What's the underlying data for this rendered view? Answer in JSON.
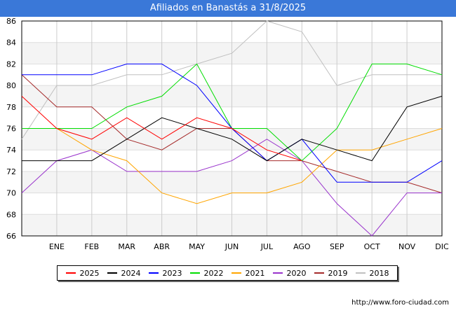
{
  "header": {
    "title": "Afiliados en Banastás a 31/8/2025"
  },
  "footer": {
    "url": "http://www.foro-ciudad.com"
  },
  "chart_data": {
    "type": "line",
    "title": "Afiliados en Banastás a 31/8/2025",
    "xlabel": "",
    "ylabel": "",
    "categories": [
      "",
      "ENE",
      "FEB",
      "MAR",
      "ABR",
      "MAY",
      "JUN",
      "JUL",
      "AGO",
      "SEP",
      "OCT",
      "NOV",
      "DIC"
    ],
    "ylim": [
      66,
      86
    ],
    "yticks": [
      66,
      68,
      70,
      72,
      74,
      76,
      78,
      80,
      82,
      84,
      86
    ],
    "grid": true,
    "legend_position": "bottom",
    "series": [
      {
        "name": "2025",
        "color": "#ff0000",
        "values": [
          79,
          76,
          75,
          77,
          75,
          77,
          76,
          74,
          73,
          null,
          null,
          null,
          null
        ]
      },
      {
        "name": "2024",
        "color": "#000000",
        "values": [
          73,
          73,
          73,
          75,
          77,
          76,
          75,
          73,
          75,
          74,
          73,
          78,
          79
        ]
      },
      {
        "name": "2023",
        "color": "#0000ff",
        "values": [
          81,
          81,
          81,
          82,
          82,
          80,
          76,
          73,
          75,
          71,
          71,
          71,
          73
        ]
      },
      {
        "name": "2022",
        "color": "#00dd00",
        "values": [
          76,
          76,
          76,
          78,
          79,
          82,
          76,
          76,
          73,
          76,
          82,
          82,
          81
        ]
      },
      {
        "name": "2021",
        "color": "#ffa500",
        "values": [
          76,
          76,
          74,
          73,
          70,
          69,
          70,
          70,
          71,
          74,
          74,
          75,
          76
        ]
      },
      {
        "name": "2020",
        "color": "#9933cc",
        "values": [
          70,
          73,
          74,
          72,
          72,
          72,
          73,
          75,
          73,
          69,
          66,
          70,
          70
        ]
      },
      {
        "name": "2019",
        "color": "#a52a2a",
        "values": [
          81,
          78,
          78,
          75,
          74,
          76,
          76,
          73,
          73,
          72,
          71,
          71,
          70
        ]
      },
      {
        "name": "2018",
        "color": "#c0c0c0",
        "values": [
          75,
          80,
          80,
          81,
          81,
          82,
          83,
          86,
          85,
          80,
          81,
          81,
          81
        ]
      }
    ]
  }
}
